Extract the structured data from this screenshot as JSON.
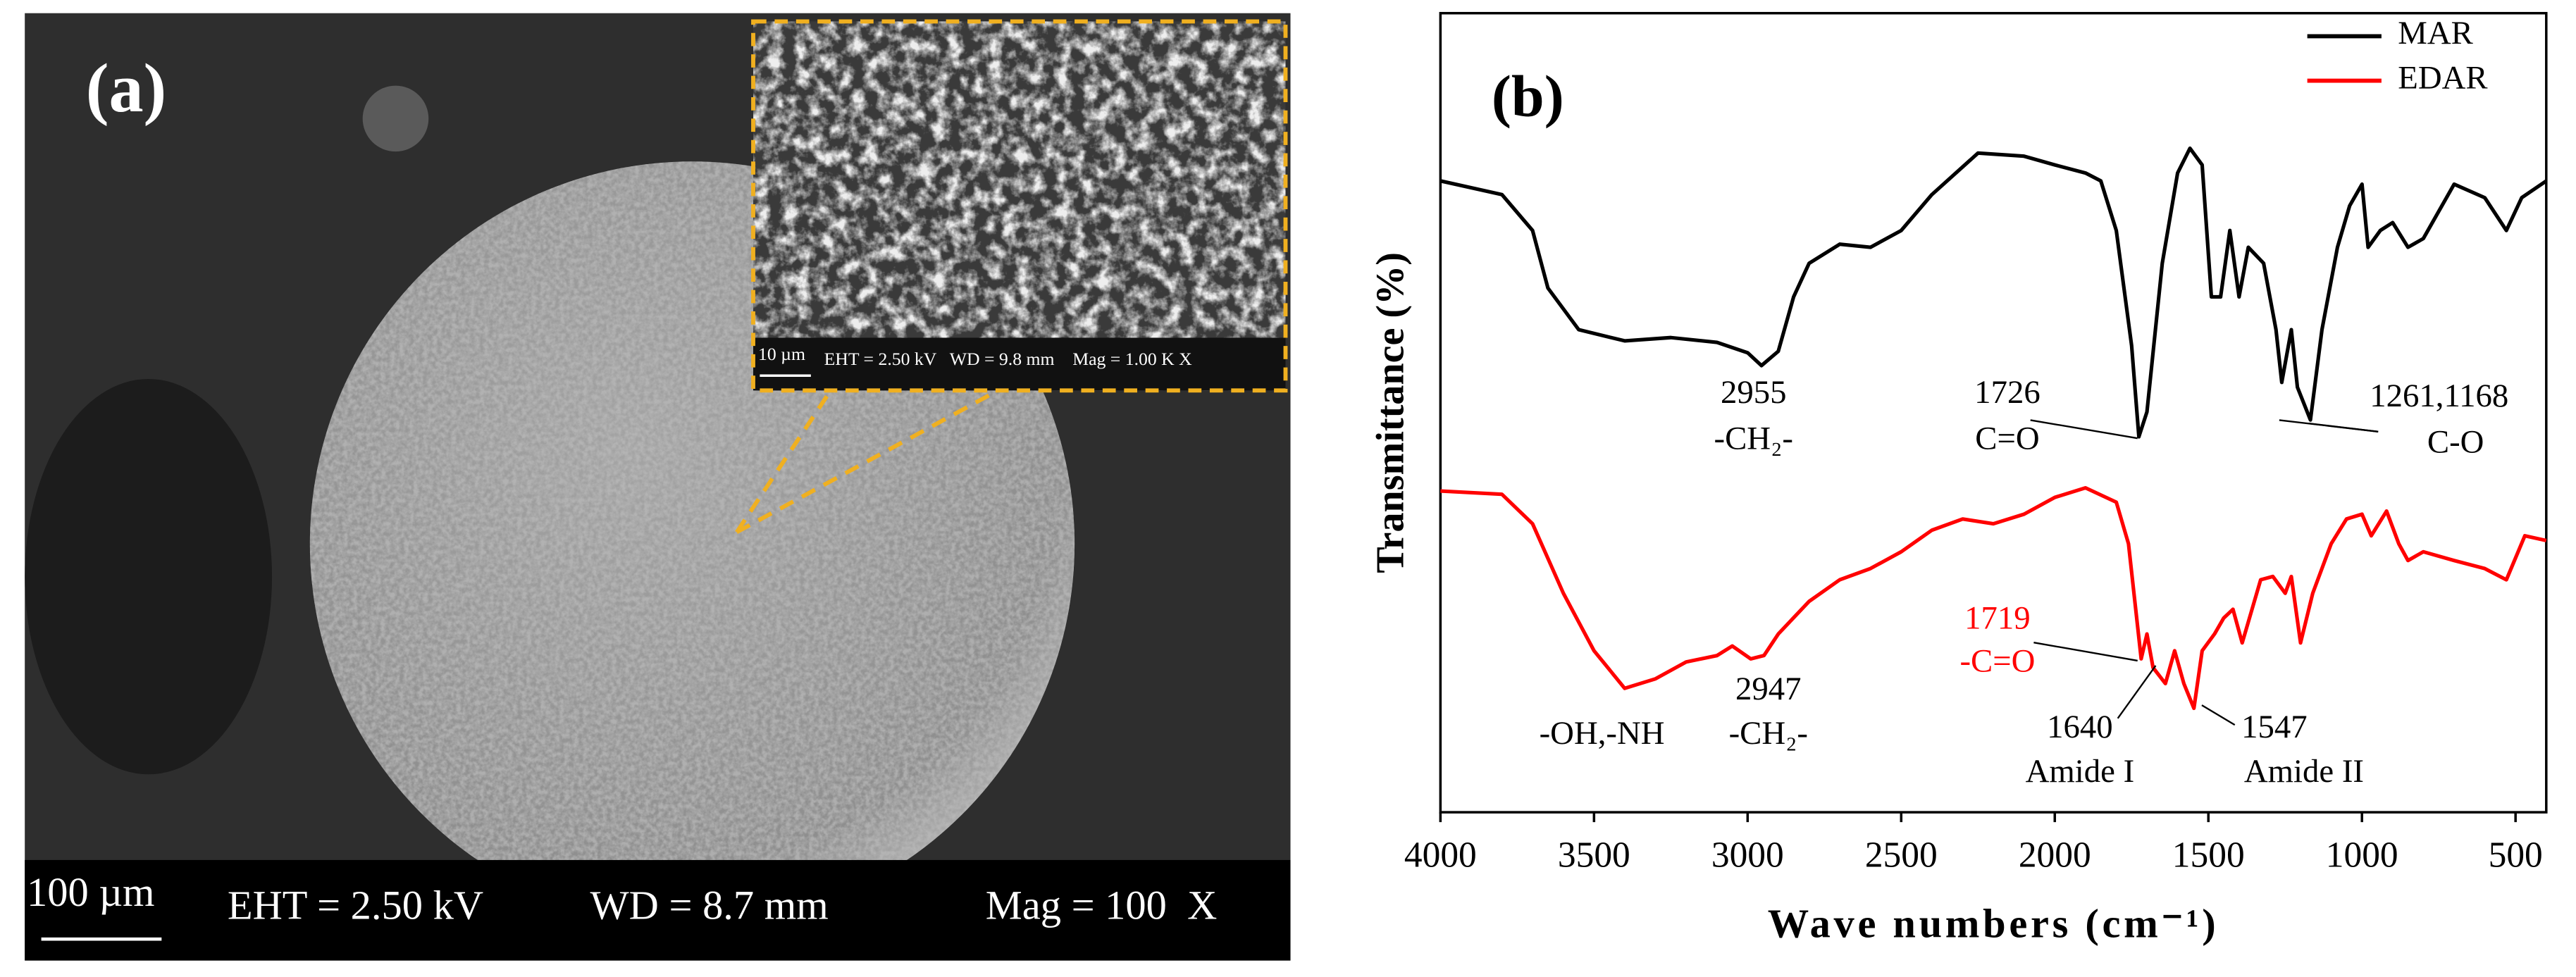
{
  "image": {
    "panel_label": "(a)",
    "scale_bar": "100 µm",
    "eht": "EHT = 2.50 kV",
    "wd": "WD = 8.7 mm",
    "mag": "Mag = 100  X",
    "inset": {
      "scale_bar": "10 µm",
      "info": "EHT = 2.50 kV   WD = 9.8 mm    Mag = 1.00 K X"
    }
  },
  "chart_data": {
    "type": "line",
    "panel_label": "(b)",
    "x_label": "Wave numbers (cm⁻¹)",
    "y_label": "Transmittance (%)",
    "xlim": [
      4000,
      400
    ],
    "ylim": [
      0,
      100
    ],
    "xticks": [
      4000,
      3500,
      3000,
      2500,
      2000,
      1500,
      1000,
      500
    ],
    "legend": "upper right",
    "series": [
      {
        "name": "MAR",
        "color": "#000000",
        "x": [
          4000,
          3800,
          3700,
          3650,
          3550,
          3400,
          3250,
          3100,
          3000,
          2955,
          2900,
          2850,
          2800,
          2700,
          2600,
          2500,
          2400,
          2250,
          2100,
          2000,
          1900,
          1850,
          1800,
          1750,
          1726,
          1700,
          1650,
          1600,
          1560,
          1520,
          1490,
          1460,
          1430,
          1400,
          1370,
          1320,
          1280,
          1261,
          1230,
          1210,
          1168,
          1130,
          1080,
          1040,
          1000,
          980,
          940,
          900,
          850,
          800,
          700,
          600,
          530,
          480,
          400
        ],
        "values": [
          79.0,
          77.3,
          72.8,
          65.6,
          60.4,
          59.0,
          59.4,
          58.8,
          57.5,
          55.9,
          57.7,
          64.5,
          68.7,
          71.1,
          70.7,
          72.8,
          77.3,
          82.5,
          82.1,
          81.0,
          80.0,
          79.0,
          72.8,
          58.4,
          47.0,
          50.1,
          68.7,
          80.0,
          83.1,
          81.0,
          64.5,
          64.5,
          72.8,
          64.5,
          70.7,
          68.7,
          60.4,
          53.8,
          60.4,
          53.2,
          49.1,
          60.4,
          70.7,
          75.9,
          78.6,
          70.7,
          72.8,
          73.8,
          70.7,
          71.8,
          78.6,
          76.9,
          72.8,
          76.9,
          79.0
        ]
      },
      {
        "name": "EDAR",
        "color": "#ff0000",
        "x": [
          4000,
          3800,
          3700,
          3600,
          3500,
          3400,
          3300,
          3200,
          3100,
          3050,
          2990,
          2947,
          2900,
          2800,
          2700,
          2600,
          2500,
          2400,
          2300,
          2200,
          2100,
          2000,
          1900,
          1800,
          1760,
          1719,
          1700,
          1680,
          1640,
          1610,
          1580,
          1547,
          1520,
          1480,
          1450,
          1420,
          1390,
          1330,
          1290,
          1250,
          1230,
          1200,
          1160,
          1100,
          1050,
          1000,
          970,
          920,
          880,
          850,
          800,
          700,
          600,
          530,
          470,
          400
        ],
        "values": [
          40.2,
          39.8,
          36.1,
          27.4,
          20.2,
          15.5,
          16.7,
          18.8,
          19.6,
          20.8,
          19.2,
          19.6,
          22.3,
          26.4,
          29.1,
          30.5,
          32.6,
          35.3,
          36.7,
          36.1,
          37.3,
          39.4,
          40.6,
          38.8,
          33.6,
          19.2,
          22.3,
          18.1,
          16.1,
          20.2,
          16.1,
          13.0,
          20.2,
          22.3,
          24.3,
          25.4,
          21.2,
          29.1,
          29.5,
          27.4,
          29.5,
          21.2,
          27.4,
          33.6,
          36.7,
          37.3,
          34.6,
          37.7,
          33.6,
          31.5,
          32.6,
          31.5,
          30.5,
          29.1,
          34.6,
          34.0
        ]
      }
    ],
    "annotations": [
      {
        "text": "2955"
      },
      {
        "text": "-CH₂-"
      },
      {
        "text": "1726"
      },
      {
        "text": "C=O"
      },
      {
        "text": "1261,1168"
      },
      {
        "text": "C-O"
      },
      {
        "text": "1719",
        "color": "#ff0000"
      },
      {
        "text": "-C=O",
        "color": "#ff0000"
      },
      {
        "text": "-OH,-NH"
      },
      {
        "text": "2947"
      },
      {
        "text": "-CH₂-"
      },
      {
        "text": "1640"
      },
      {
        "text": "Amide I"
      },
      {
        "text": "1547"
      },
      {
        "text": "Amide II"
      }
    ]
  }
}
